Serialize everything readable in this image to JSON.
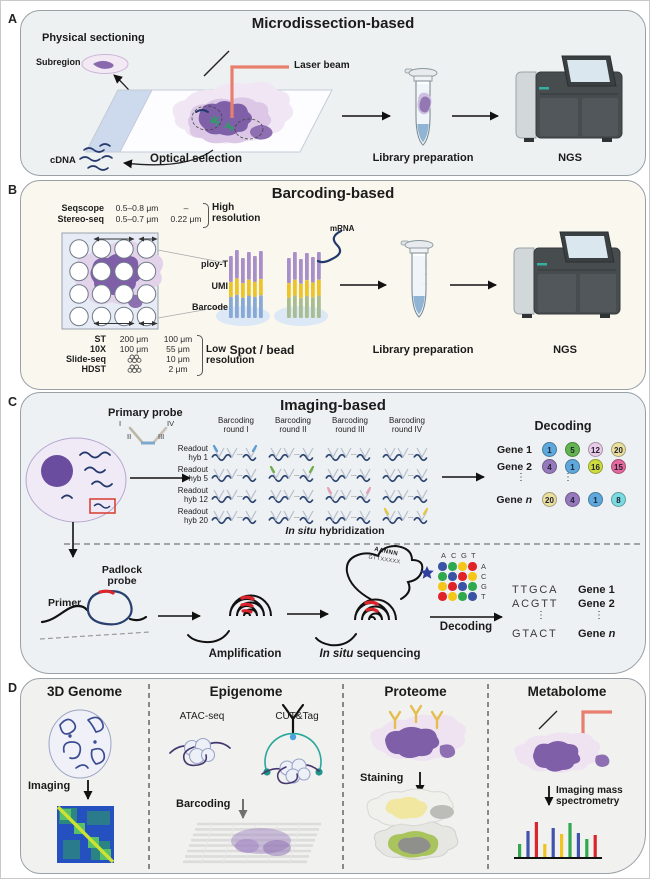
{
  "palette": {
    "tissue_purple": "#7e5fa8",
    "laser_red": "#e87f6e",
    "mrna_navy": "#24386b",
    "base_colors": {
      "blue": "#3a53a4",
      "green": "#2fa84e",
      "yellow": "#f5c518",
      "red": "#e02329"
    },
    "spectrum_colors": {
      "green": "#2fa84e",
      "blue": "#4053ad",
      "red": "#d9262c",
      "yellow": "#f0c325"
    },
    "round_signal_colors": [
      "#5b9bd5",
      "#70ad47",
      "#e8a0b4",
      "#e3c83f"
    ]
  },
  "panels": {
    "a": {
      "label": "A",
      "title": "Microdissection-based",
      "physical_sectioning": "Physical sectioning",
      "subregion": "Subregion",
      "laser_beam": "Laser beam",
      "cdna": "cDNA",
      "optical_selection": "Optical selection",
      "library_preparation": "Library preparation",
      "ngs": "NGS"
    },
    "b": {
      "label": "B",
      "title": "Barcoding-based",
      "high_res": {
        "rows": [
          {
            "name": "Seqscope",
            "v1": "0.5–0.8 μm",
            "v2": "–"
          },
          {
            "name": "Stereo-seq",
            "v1": "0.5–0.7 μm",
            "v2": "0.22 μm"
          }
        ],
        "caption_line1": "High",
        "caption_line2": "resolution"
      },
      "low_res": {
        "rows": [
          {
            "name": "ST",
            "v1": "200 μm",
            "v2": "100 μm",
            "icon": false
          },
          {
            "name": "10X",
            "v1": "100 μm",
            "v2": "55 μm",
            "icon": false
          },
          {
            "name": "Slide-seq",
            "v1": "",
            "v2": "10 μm",
            "icon": true
          },
          {
            "name": "HDST",
            "v1": "",
            "v2": "2 μm",
            "icon": true
          }
        ],
        "caption_line1": "Low",
        "caption_line2": "resolution"
      },
      "probe_labels": [
        "ploy-T",
        "UMI",
        "Barcode"
      ],
      "mrna": "mRNA",
      "spot_bead": "Spot / bead",
      "library_preparation": "Library preparation",
      "ngs": "NGS"
    },
    "c": {
      "label": "C",
      "title": "Imaging-based",
      "primary_probe": "Primary probe",
      "probe_numerals": [
        "I",
        "II",
        "III",
        "IV"
      ],
      "readouts": [
        [
          "Readout",
          "hyb 1"
        ],
        [
          "Readout",
          "hyb 5"
        ],
        [
          "Readout",
          "hyb 12"
        ],
        [
          "Readout",
          "hyb 20"
        ]
      ],
      "rounds": [
        [
          "Barcoding",
          "round I"
        ],
        [
          "Barcoding",
          "round II"
        ],
        [
          "Barcoding",
          "round III"
        ],
        [
          "Barcoding",
          "round IV"
        ]
      ],
      "hyb_caption_italic": "In situ",
      "hyb_caption_rest": " hybridization",
      "decoding_title": "Decoding",
      "genes": [
        {
          "prefix": "Gene ",
          "suffix": "1",
          "italic_suffix": false,
          "codes": [
            {
              "n": "1",
              "color": "#5da8dc"
            },
            {
              "n": "5",
              "color": "#62b54e"
            },
            {
              "n": "12",
              "color": "#e9cbe8"
            },
            {
              "n": "20",
              "color": "#eadf9e"
            }
          ]
        },
        {
          "prefix": "Gene ",
          "suffix": "2",
          "italic_suffix": false,
          "codes": [
            {
              "n": "4",
              "color": "#9678bc"
            },
            {
              "n": "1",
              "color": "#5da8dc"
            },
            {
              "n": "16",
              "color": "#cddc3c"
            },
            {
              "n": "15",
              "color": "#e4679d"
            }
          ]
        },
        {
          "prefix": "Gene ",
          "suffix": "n",
          "italic_suffix": true,
          "codes": [
            {
              "n": "20",
              "color": "#eadf9e"
            },
            {
              "n": "4",
              "color": "#9678bc"
            },
            {
              "n": "1",
              "color": "#5da8dc"
            },
            {
              "n": "8",
              "color": "#7adce2"
            }
          ]
        }
      ],
      "padlock_line1": "Padlock",
      "padlock_line2": "probe",
      "primer": "Primer",
      "amplification": "Amplification",
      "loop_text_top": "AANNN",
      "loop_text_bottom": "GTTXXXXX",
      "insitu_seq_italic": "In situ",
      "insitu_seq_rest": " sequencing",
      "acgt_top": [
        "A",
        "C",
        "G",
        "T"
      ],
      "acgt_right": [
        "A",
        "C",
        "G",
        "T"
      ],
      "dot_matrix": [
        [
          "blue",
          "green",
          "yellow",
          "red"
        ],
        [
          "green",
          "blue",
          "red",
          "yellow"
        ],
        [
          "yellow",
          "red",
          "blue",
          "green"
        ],
        [
          "red",
          "yellow",
          "green",
          "blue"
        ]
      ],
      "decoding_arrow_label": "Decoding",
      "sequences": [
        {
          "seq": "TTGCA",
          "prefix": "Gene ",
          "suffix": "1",
          "italic_suffix": false
        },
        {
          "seq": "ACGTT",
          "prefix": "Gene ",
          "suffix": "2",
          "italic_suffix": false
        },
        {
          "seq": "GTACT",
          "prefix": "Gene ",
          "suffix": "n",
          "italic_suffix": true
        }
      ]
    },
    "d": {
      "label": "D",
      "columns": [
        {
          "title": "3D Genome",
          "step": "Imaging"
        },
        {
          "title": "Epigenome",
          "method1": "ATAC-seq",
          "method2": "CUT&Tag",
          "step": "Barcoding"
        },
        {
          "title": "Proteome",
          "step": "Staining"
        },
        {
          "title": "Metabolome",
          "step_line1": "Imaging mass",
          "step_line2": "spectrometry"
        }
      ],
      "spectrum": {
        "bars": [
          {
            "color": "green",
            "h": 14
          },
          {
            "color": "blue",
            "h": 27
          },
          {
            "color": "red",
            "h": 36
          },
          {
            "color": "yellow",
            "h": 14
          },
          {
            "color": "blue",
            "h": 30
          },
          {
            "color": "yellow",
            "h": 24
          },
          {
            "color": "green",
            "h": 35
          },
          {
            "color": "blue",
            "h": 25
          },
          {
            "color": "green",
            "h": 19
          },
          {
            "color": "red",
            "h": 23
          }
        ]
      }
    }
  }
}
